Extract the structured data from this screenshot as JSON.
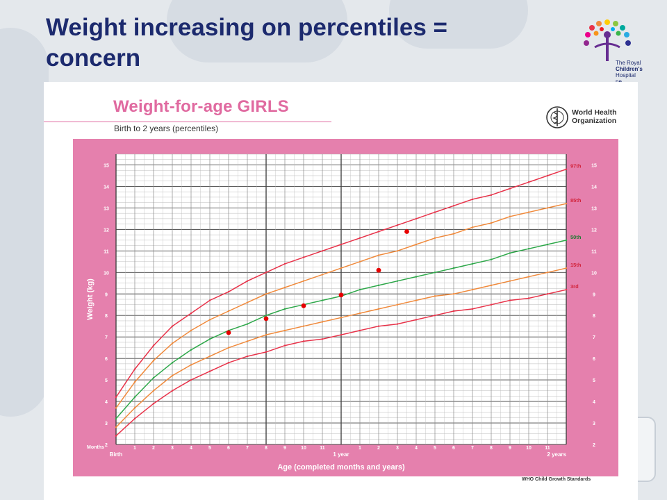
{
  "slide": {
    "title": "Weight increasing on percentiles = concern"
  },
  "logo": {
    "lines": [
      "The Royal",
      "Children's",
      "Hospital",
      "ne"
    ]
  },
  "who": {
    "line1": "World Health",
    "line2": "Organization"
  },
  "footer": "WHO Child Growth Standards",
  "chart_data": {
    "type": "line",
    "title": "Weight-for-age GIRLS",
    "subtitle": "Birth to 2 years (percentiles)",
    "ylabel": "Weight (kg)",
    "xlabel": "Age (completed months and years)",
    "x_unit": "months",
    "xlim": [
      0,
      24
    ],
    "ylim": [
      2,
      15.5
    ],
    "y_ticks": [
      2,
      3,
      4,
      5,
      6,
      7,
      8,
      9,
      10,
      11,
      12,
      13,
      14,
      15
    ],
    "x_tick_labels": [
      "Birth",
      "1",
      "2",
      "3",
      "4",
      "5",
      "6",
      "7",
      "8",
      "9",
      "10",
      "11",
      "1 year",
      "1",
      "2",
      "3",
      "4",
      "5",
      "6",
      "7",
      "8",
      "9",
      "10",
      "11",
      "2 years"
    ],
    "months_label": "Months",
    "x": [
      0,
      1,
      2,
      3,
      4,
      5,
      6,
      7,
      8,
      9,
      10,
      11,
      12,
      13,
      14,
      15,
      16,
      17,
      18,
      19,
      20,
      21,
      22,
      23,
      24
    ],
    "series": [
      {
        "name": "97th",
        "color": "#e8334a",
        "values": [
          4.2,
          5.5,
          6.6,
          7.5,
          8.1,
          8.7,
          9.1,
          9.6,
          10.0,
          10.4,
          10.7,
          11.0,
          11.3,
          11.6,
          11.9,
          12.2,
          12.5,
          12.8,
          13.1,
          13.4,
          13.6,
          13.9,
          14.2,
          14.5,
          14.8
        ]
      },
      {
        "name": "85th",
        "color": "#f08a3c",
        "values": [
          3.7,
          4.9,
          5.9,
          6.7,
          7.3,
          7.8,
          8.2,
          8.6,
          9.0,
          9.3,
          9.6,
          9.9,
          10.2,
          10.5,
          10.8,
          11.0,
          11.3,
          11.6,
          11.8,
          12.1,
          12.3,
          12.6,
          12.8,
          13.0,
          13.2
        ]
      },
      {
        "name": "50th",
        "color": "#2ea84a",
        "values": [
          3.2,
          4.2,
          5.1,
          5.8,
          6.4,
          6.9,
          7.3,
          7.6,
          8.0,
          8.3,
          8.5,
          8.7,
          8.9,
          9.2,
          9.4,
          9.6,
          9.8,
          10.0,
          10.2,
          10.4,
          10.6,
          10.9,
          11.1,
          11.3,
          11.5
        ]
      },
      {
        "name": "15th",
        "color": "#f08a3c",
        "values": [
          2.8,
          3.7,
          4.5,
          5.2,
          5.7,
          6.1,
          6.5,
          6.8,
          7.1,
          7.3,
          7.5,
          7.7,
          7.9,
          8.1,
          8.3,
          8.5,
          8.7,
          8.9,
          9.0,
          9.2,
          9.4,
          9.6,
          9.8,
          10.0,
          10.2
        ]
      },
      {
        "name": "3rd",
        "color": "#e8334a",
        "values": [
          2.4,
          3.2,
          3.9,
          4.5,
          5.0,
          5.4,
          5.8,
          6.1,
          6.3,
          6.6,
          6.8,
          6.9,
          7.1,
          7.3,
          7.5,
          7.6,
          7.8,
          8.0,
          8.2,
          8.3,
          8.5,
          8.7,
          8.8,
          9.0,
          9.2
        ]
      }
    ],
    "points": [
      {
        "x": 6,
        "y": 7.2
      },
      {
        "x": 8,
        "y": 7.85
      },
      {
        "x": 10,
        "y": 8.45
      },
      {
        "x": 12,
        "y": 8.95
      },
      {
        "x": 14,
        "y": 10.1
      },
      {
        "x": 15.5,
        "y": 11.9
      }
    ],
    "point_color": "#e60000",
    "grid": true,
    "colors": {
      "frame": "#e580ad",
      "plot_bg": "#ffffff",
      "grid_minor": "#bbbbbb",
      "grid_major": "#444444",
      "axis_text": "#ffffff"
    }
  }
}
